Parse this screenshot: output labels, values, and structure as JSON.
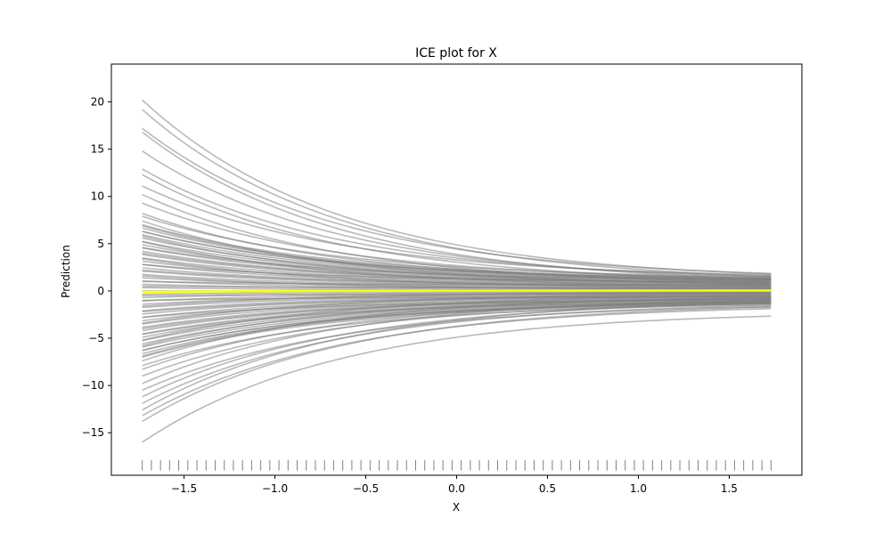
{
  "chart_data": {
    "type": "line",
    "title": "ICE plot for X",
    "xlabel": "X",
    "ylabel": "Prediction",
    "xlim": [
      -1.9,
      1.9
    ],
    "ylim": [
      -19.5,
      24.0
    ],
    "x_ticks": [
      -1.5,
      -1.0,
      -0.5,
      0.0,
      0.5,
      1.0,
      1.5
    ],
    "x_tick_labels": [
      "−1.5",
      "−1.0",
      "−0.5",
      "0.0",
      "0.5",
      "1.0",
      "1.5"
    ],
    "y_ticks": [
      -15,
      -10,
      -5,
      0,
      5,
      10,
      15,
      20
    ],
    "y_tick_labels": [
      "−15",
      "−10",
      "−5",
      "0",
      "5",
      "10",
      "15",
      "20"
    ],
    "grid": false,
    "x_range": [
      -1.73,
      1.73
    ],
    "ice_line_color": "#808080",
    "average_line_color": "#ffff00",
    "rug_color": "#808080",
    "series": [
      {
        "role": "ice",
        "start": 20.2,
        "end": 1.0
      },
      {
        "role": "ice",
        "start": 19.2,
        "end": 0.8
      },
      {
        "role": "ice",
        "start": 17.2,
        "end": 1.2
      },
      {
        "role": "ice",
        "start": 16.8,
        "end": 0.6
      },
      {
        "role": "ice",
        "start": 14.8,
        "end": 0.9
      },
      {
        "role": "ice",
        "start": 12.9,
        "end": 1.1
      },
      {
        "role": "ice",
        "start": 12.3,
        "end": 0.7
      },
      {
        "role": "ice",
        "start": 11.1,
        "end": 1.3
      },
      {
        "role": "ice",
        "start": 10.2,
        "end": 0.5
      },
      {
        "role": "ice",
        "start": 9.3,
        "end": 1.0
      },
      {
        "role": "ice",
        "start": 8.2,
        "end": 0.8
      },
      {
        "role": "ice",
        "start": 7.9,
        "end": 1.2
      },
      {
        "role": "ice",
        "start": 7.4,
        "end": 0.4
      },
      {
        "role": "ice",
        "start": 6.9,
        "end": 0.9
      },
      {
        "role": "ice",
        "start": 6.3,
        "end": 1.1
      },
      {
        "role": "ice",
        "start": 5.8,
        "end": 0.6
      },
      {
        "role": "ice",
        "start": 5.2,
        "end": 0.3
      },
      {
        "role": "ice",
        "start": 4.6,
        "end": 1.0
      },
      {
        "role": "ice",
        "start": 4.0,
        "end": 0.7
      },
      {
        "role": "ice",
        "start": 3.4,
        "end": 0.2
      },
      {
        "role": "ice",
        "start": 2.8,
        "end": 0.9
      },
      {
        "role": "ice",
        "start": 2.2,
        "end": 0.5
      },
      {
        "role": "ice",
        "start": 1.6,
        "end": 0.1
      },
      {
        "role": "ice",
        "start": 1.0,
        "end": 0.6
      },
      {
        "role": "ice",
        "start": 0.5,
        "end": 0.3
      },
      {
        "role": "ice",
        "start": -0.5,
        "end": -0.3
      },
      {
        "role": "ice",
        "start": -1.0,
        "end": -0.6
      },
      {
        "role": "ice",
        "start": -1.6,
        "end": -0.1
      },
      {
        "role": "ice",
        "start": -2.2,
        "end": -0.5
      },
      {
        "role": "ice",
        "start": -2.8,
        "end": -0.9
      },
      {
        "role": "ice",
        "start": -3.4,
        "end": -0.2
      },
      {
        "role": "ice",
        "start": -4.0,
        "end": -0.7
      },
      {
        "role": "ice",
        "start": -4.6,
        "end": -1.0
      },
      {
        "role": "ice",
        "start": -5.2,
        "end": -0.3
      },
      {
        "role": "ice",
        "start": -5.8,
        "end": -0.6
      },
      {
        "role": "ice",
        "start": -6.3,
        "end": -1.1
      },
      {
        "role": "ice",
        "start": -6.9,
        "end": -0.9
      },
      {
        "role": "ice",
        "start": -7.4,
        "end": -0.4
      },
      {
        "role": "ice",
        "start": -7.9,
        "end": -1.2
      },
      {
        "role": "ice",
        "start": -8.3,
        "end": -0.8
      },
      {
        "role": "ice",
        "start": -9.0,
        "end": -1.0
      },
      {
        "role": "ice",
        "start": -9.8,
        "end": -0.6
      },
      {
        "role": "ice",
        "start": -10.5,
        "end": -1.3
      },
      {
        "role": "ice",
        "start": -11.2,
        "end": -0.9
      },
      {
        "role": "ice",
        "start": -11.9,
        "end": -1.1
      },
      {
        "role": "ice",
        "start": -12.6,
        "end": -0.7
      },
      {
        "role": "ice",
        "start": -13.2,
        "end": -1.4
      },
      {
        "role": "ice",
        "start": -13.8,
        "end": -1.2
      },
      {
        "role": "ice",
        "start": -16.0,
        "end": -2.1
      },
      {
        "role": "average",
        "start": -0.1,
        "end": 0.05
      }
    ]
  }
}
